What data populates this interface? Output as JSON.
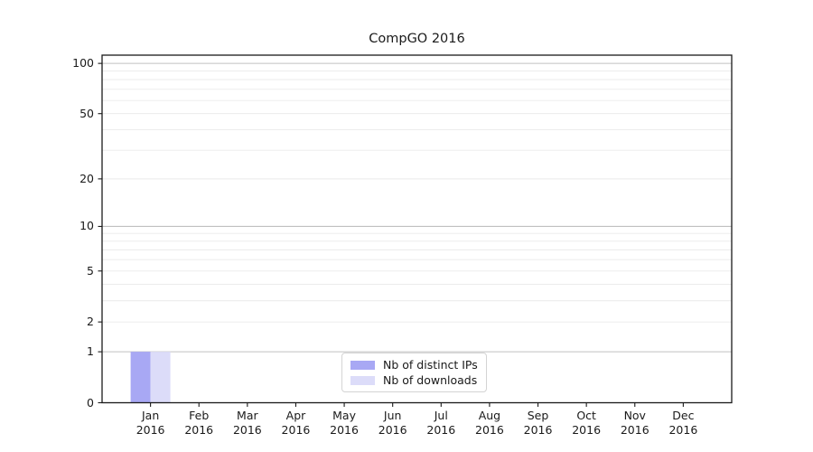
{
  "figure": {
    "background": "#ffffff"
  },
  "chart_data": {
    "type": "bar",
    "title": "CompGO 2016",
    "categories": [
      "Jan",
      "Feb",
      "Mar",
      "Apr",
      "May",
      "Jun",
      "Jul",
      "Aug",
      "Sep",
      "Oct",
      "Nov",
      "Dec"
    ],
    "category_sublabel": "2016",
    "series": [
      {
        "name": "Nb of distinct IPs",
        "color": "#a8a8f4",
        "values": [
          1,
          0,
          0,
          0,
          0,
          0,
          0,
          0,
          0,
          0,
          0,
          0
        ]
      },
      {
        "name": "Nb of downloads",
        "color": "#dcdcf9",
        "values": [
          1,
          0,
          0,
          0,
          0,
          0,
          0,
          0,
          0,
          0,
          0,
          0
        ]
      }
    ],
    "y_axis": {
      "scale": "log1p",
      "ticks": [
        0,
        1,
        2,
        5,
        10,
        20,
        50,
        100
      ],
      "emphasized_grid_values": [
        1,
        10,
        100
      ],
      "minor_grid_values": [
        3,
        4,
        6,
        7,
        8,
        9,
        30,
        40,
        60,
        70,
        80,
        90
      ],
      "max": 112
    },
    "xlabel": "",
    "ylabel": "",
    "grid": {
      "major_color": "#c0c0c0",
      "minor_color": "#e9e9e9"
    },
    "legend": {
      "position": "lower center"
    },
    "colors": {
      "axis": "#1a1a1a",
      "text": "#1a1a1a"
    }
  }
}
